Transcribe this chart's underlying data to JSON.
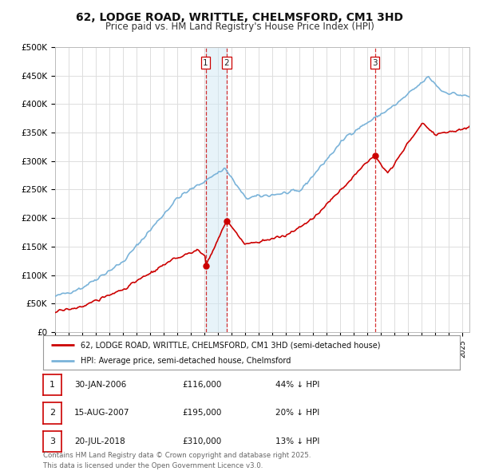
{
  "title": "62, LODGE ROAD, WRITTLE, CHELMSFORD, CM1 3HD",
  "subtitle": "Price paid vs. HM Land Registry's House Price Index (HPI)",
  "title_fontsize": 10,
  "subtitle_fontsize": 8.5,
  "background_color": "#ffffff",
  "grid_color": "#dddddd",
  "hpi_color": "#7ab3d9",
  "hpi_fill_color": "#d0e8f5",
  "price_color": "#cc0000",
  "ylim": [
    0,
    500000
  ],
  "yticks": [
    0,
    50000,
    100000,
    150000,
    200000,
    250000,
    300000,
    350000,
    400000,
    450000,
    500000
  ],
  "ytick_labels": [
    "£0",
    "£50K",
    "£100K",
    "£150K",
    "£200K",
    "£250K",
    "£300K",
    "£350K",
    "£400K",
    "£450K",
    "£500K"
  ],
  "xlim_start": 1995.0,
  "xlim_end": 2025.5,
  "transactions": [
    {
      "date": 2006.08,
      "price": 116000,
      "label": "1"
    },
    {
      "date": 2007.62,
      "price": 195000,
      "label": "2"
    },
    {
      "date": 2018.54,
      "price": 310000,
      "label": "3"
    }
  ],
  "transaction_dates_full": [
    "30-JAN-2006",
    "15-AUG-2007",
    "20-JUL-2018"
  ],
  "transaction_prices_fmt": [
    "£116,000",
    "£195,000",
    "£310,000"
  ],
  "transaction_hpi_pct": [
    "44% ↓ HPI",
    "20% ↓ HPI",
    "13% ↓ HPI"
  ],
  "legend_line1": "62, LODGE ROAD, WRITTLE, CHELMSFORD, CM1 3HD (semi-detached house)",
  "legend_line2": "HPI: Average price, semi-detached house, Chelmsford",
  "footer": "Contains HM Land Registry data © Crown copyright and database right 2025.\nThis data is licensed under the Open Government Licence v3.0."
}
